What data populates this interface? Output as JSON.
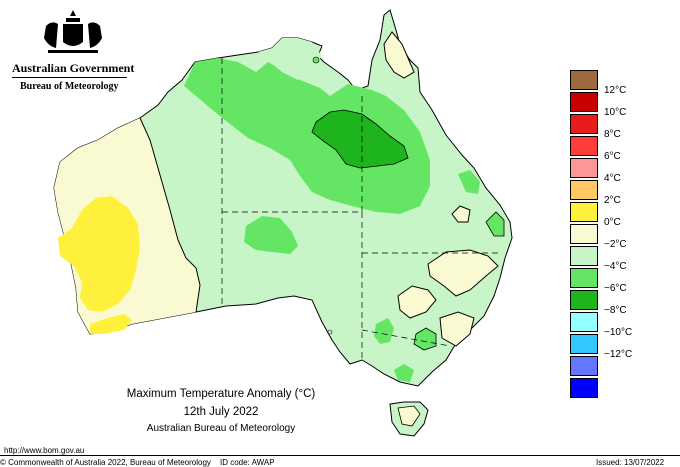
{
  "header": {
    "government": "Australian Government",
    "bureau": "Bureau of Meteorology"
  },
  "caption": {
    "title": "Maximum Temperature Anomaly (°C)",
    "date": "12th July 2022",
    "org": "Australian Bureau of Meteorology"
  },
  "footer": {
    "url": "http://www.bom.gov.au",
    "copyright": "© Commonwealth of Australia 2022, Bureau of Meteorology",
    "id_code": "ID code: AWAP",
    "issued": "Issued: 13/07/2022"
  },
  "legend": [
    {
      "label": "",
      "color": "#9c6a3c"
    },
    {
      "label": "12°C",
      "color": "#c80000"
    },
    {
      "label": "10°C",
      "color": "#e81c1c"
    },
    {
      "label": "8°C",
      "color": "#ff3c3c"
    },
    {
      "label": "6°C",
      "color": "#ff9696"
    },
    {
      "label": "4°C",
      "color": "#ffc864"
    },
    {
      "label": "2°C",
      "color": "#fff03c"
    },
    {
      "label": "0°C",
      "color": "#fafad2"
    },
    {
      "label": "−2°C",
      "color": "#c8f5c8"
    },
    {
      "label": "−4°C",
      "color": "#64e664"
    },
    {
      "label": "−6°C",
      "color": "#1eb41e"
    },
    {
      "label": "−8°C",
      "color": "#96ffff"
    },
    {
      "label": "−10°C",
      "color": "#32c8ff"
    },
    {
      "label": "−12°C",
      "color": "#6478ff"
    },
    {
      "label": "",
      "color": "#0000ff"
    }
  ],
  "map_colors": {
    "light_green": "#c8f5c8",
    "mid_green": "#64e664",
    "dark_green": "#1eb41e",
    "cream": "#fafad2",
    "yellow": "#fff03c"
  }
}
